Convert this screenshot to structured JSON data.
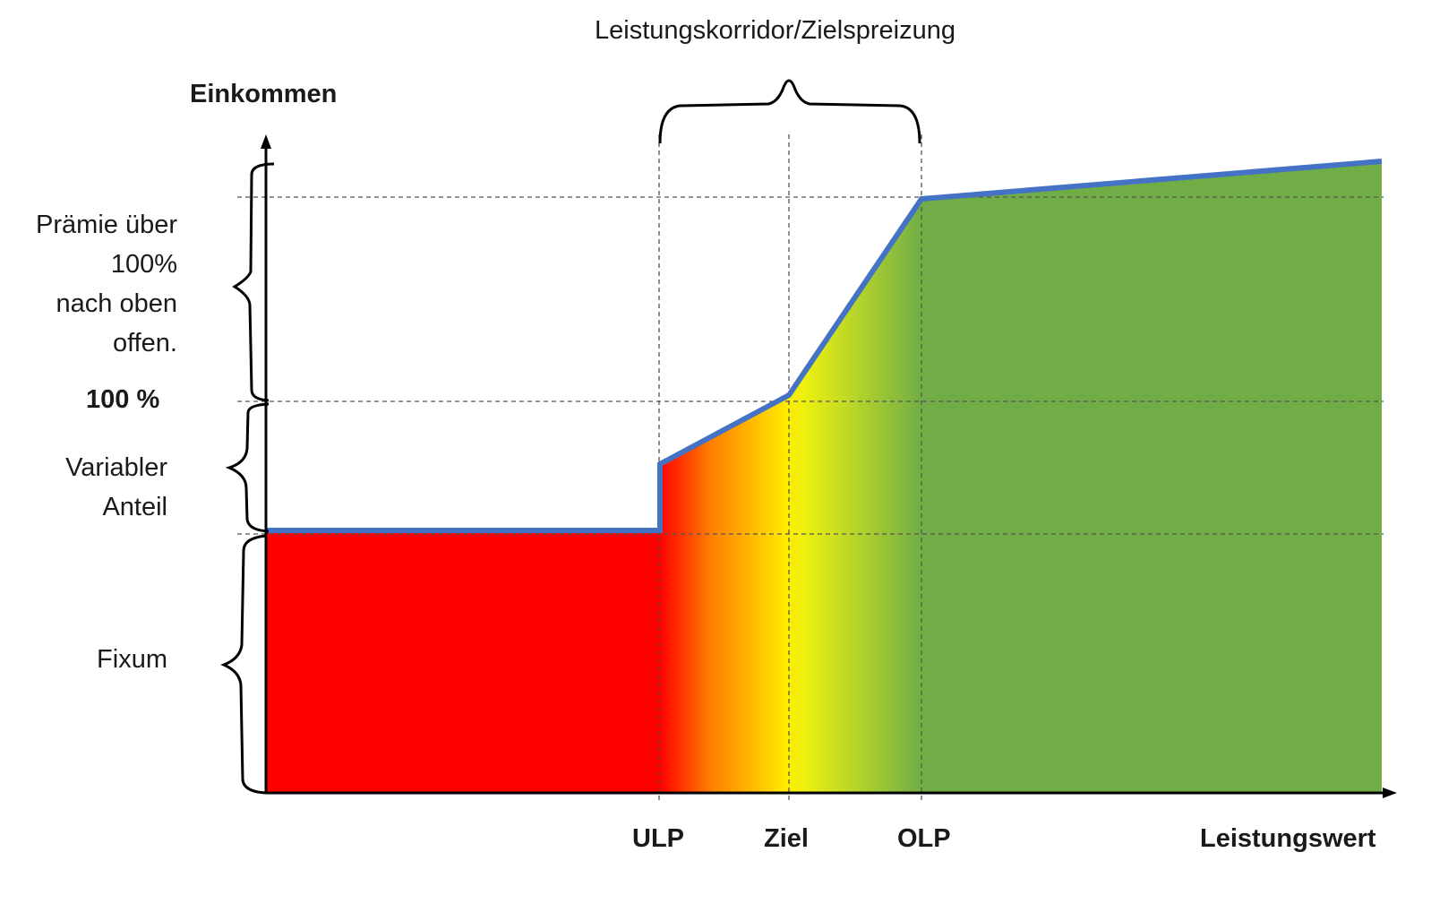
{
  "title": "Leistungskorridor/Zielspreizung",
  "y_axis_label": "Einkommen",
  "x_axis_label": "Leistungswert",
  "x_markers": [
    "ULP",
    "Ziel",
    "OLP"
  ],
  "y_marker": "100 %",
  "segments": {
    "praemie": [
      "Prämie über",
      "100%",
      "nach oben",
      "offen."
    ],
    "variabel": [
      "Variabler",
      "Anteil"
    ],
    "fixum": "Fixum"
  },
  "colors": {
    "line": "#4472c4",
    "fixum_fill": "#ff0000",
    "gradient": [
      "#ff0000",
      "#ffa000",
      "#ffee00",
      "#c8dc28",
      "#70ad47"
    ],
    "above_olp_fill": "#70ad47"
  }
}
